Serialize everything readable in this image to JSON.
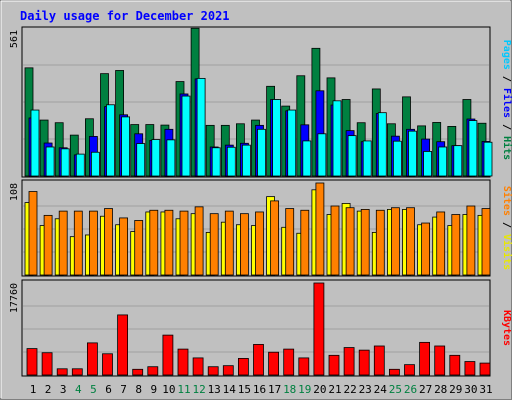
{
  "chart_data": {
    "type": "bar",
    "title": "Daily usage for December 2021",
    "categories": [
      "1",
      "2",
      "3",
      "4",
      "5",
      "6",
      "7",
      "8",
      "9",
      "10",
      "11",
      "12",
      "13",
      "14",
      "15",
      "16",
      "17",
      "18",
      "19",
      "20",
      "21",
      "22",
      "23",
      "24",
      "25",
      "26",
      "27",
      "28",
      "29",
      "30",
      "31"
    ],
    "weekend_days": [
      4,
      5,
      11,
      12,
      18,
      19,
      25,
      26
    ],
    "panels": [
      {
        "id": "top",
        "scale_max_label": "561",
        "ymax": 561,
        "right_label_parts": [
          "Pages",
          "Files",
          "Hits"
        ],
        "series": [
          {
            "name": "Hits",
            "color": "#008040",
            "values": [
              410,
              212,
              202,
              155,
              217,
              388,
              400,
              195,
              195,
              193,
              358,
              560,
              192,
              192,
              198,
              212,
              340,
              265,
              380,
              484,
              372,
              290,
              202,
              330,
              198,
              300,
              190,
              203,
              188,
              290,
              200
            ]
          },
          {
            "name": "Files",
            "color": "#0000ff",
            "values": [
              220,
              125,
              107,
              80,
              150,
              263,
              232,
              160,
              135,
              177,
              311,
              368,
              110,
              117,
              124,
              192,
              290,
              247,
              194,
              323,
              269,
              172,
              130,
              237,
              151,
              177,
              140,
              130,
              115,
              216,
              131
            ]
          },
          {
            "name": "Pages",
            "color": "#00ffff",
            "values": [
              250,
              110,
              103,
              83,
              90,
              270,
              224,
              123,
              138,
              137,
              303,
              370,
              107,
              109,
              117,
              177,
              290,
              250,
              133,
              160,
              285,
              153,
              133,
              240,
              132,
              170,
              93,
              110,
              115,
              210,
              128
            ]
          }
        ]
      },
      {
        "id": "middle",
        "scale_max_label": "108",
        "ymax": 108,
        "right_label_parts": [
          "Sites",
          "Visits"
        ],
        "series": [
          {
            "name": "Visits",
            "color": "#ffff00",
            "values": [
              85,
              58,
              66,
              45,
              47,
              69,
              59,
              51,
              74,
              74,
              66,
              72,
              50,
              62,
              59,
              58,
              92,
              56,
              49,
              100,
              71,
              84,
              75,
              50,
              77,
              77,
              59,
              68,
              58,
              71,
              70
            ]
          },
          {
            "name": "Sites",
            "color": "#ff8000",
            "values": [
              98,
              70,
              75,
              75,
              75,
              78,
              67,
              64,
              76,
              76,
              75,
              80,
              72,
              75,
              72,
              74,
              87,
              78,
              76,
              108,
              81,
              79,
              77,
              76,
              79,
              79,
              61,
              74,
              71,
              81,
              78
            ]
          }
        ]
      },
      {
        "id": "bottom",
        "scale_max_label": "17760",
        "ymax": 17760,
        "right_label_parts": [
          "KBytes"
        ],
        "series": [
          {
            "name": "KBytes",
            "color": "#ff0000",
            "values": [
              5100,
              4300,
              1200,
              1200,
              6200,
              4100,
              11600,
              1100,
              1600,
              7700,
              5000,
              3300,
              1600,
              1800,
              3200,
              5900,
              4400,
              5000,
              3300,
              17760,
              3800,
              5300,
              4800,
              5600,
              1100,
              2000,
              6300,
              5600,
              3800,
              2600,
              2300
            ]
          }
        ]
      }
    ],
    "colors": {
      "background": "#c0c0c0",
      "panel_bg": "#c0c0c0",
      "title": "#0000ff",
      "weekday_label": "#000000",
      "weekend_label": "#008040",
      "grid": "#808080"
    }
  }
}
